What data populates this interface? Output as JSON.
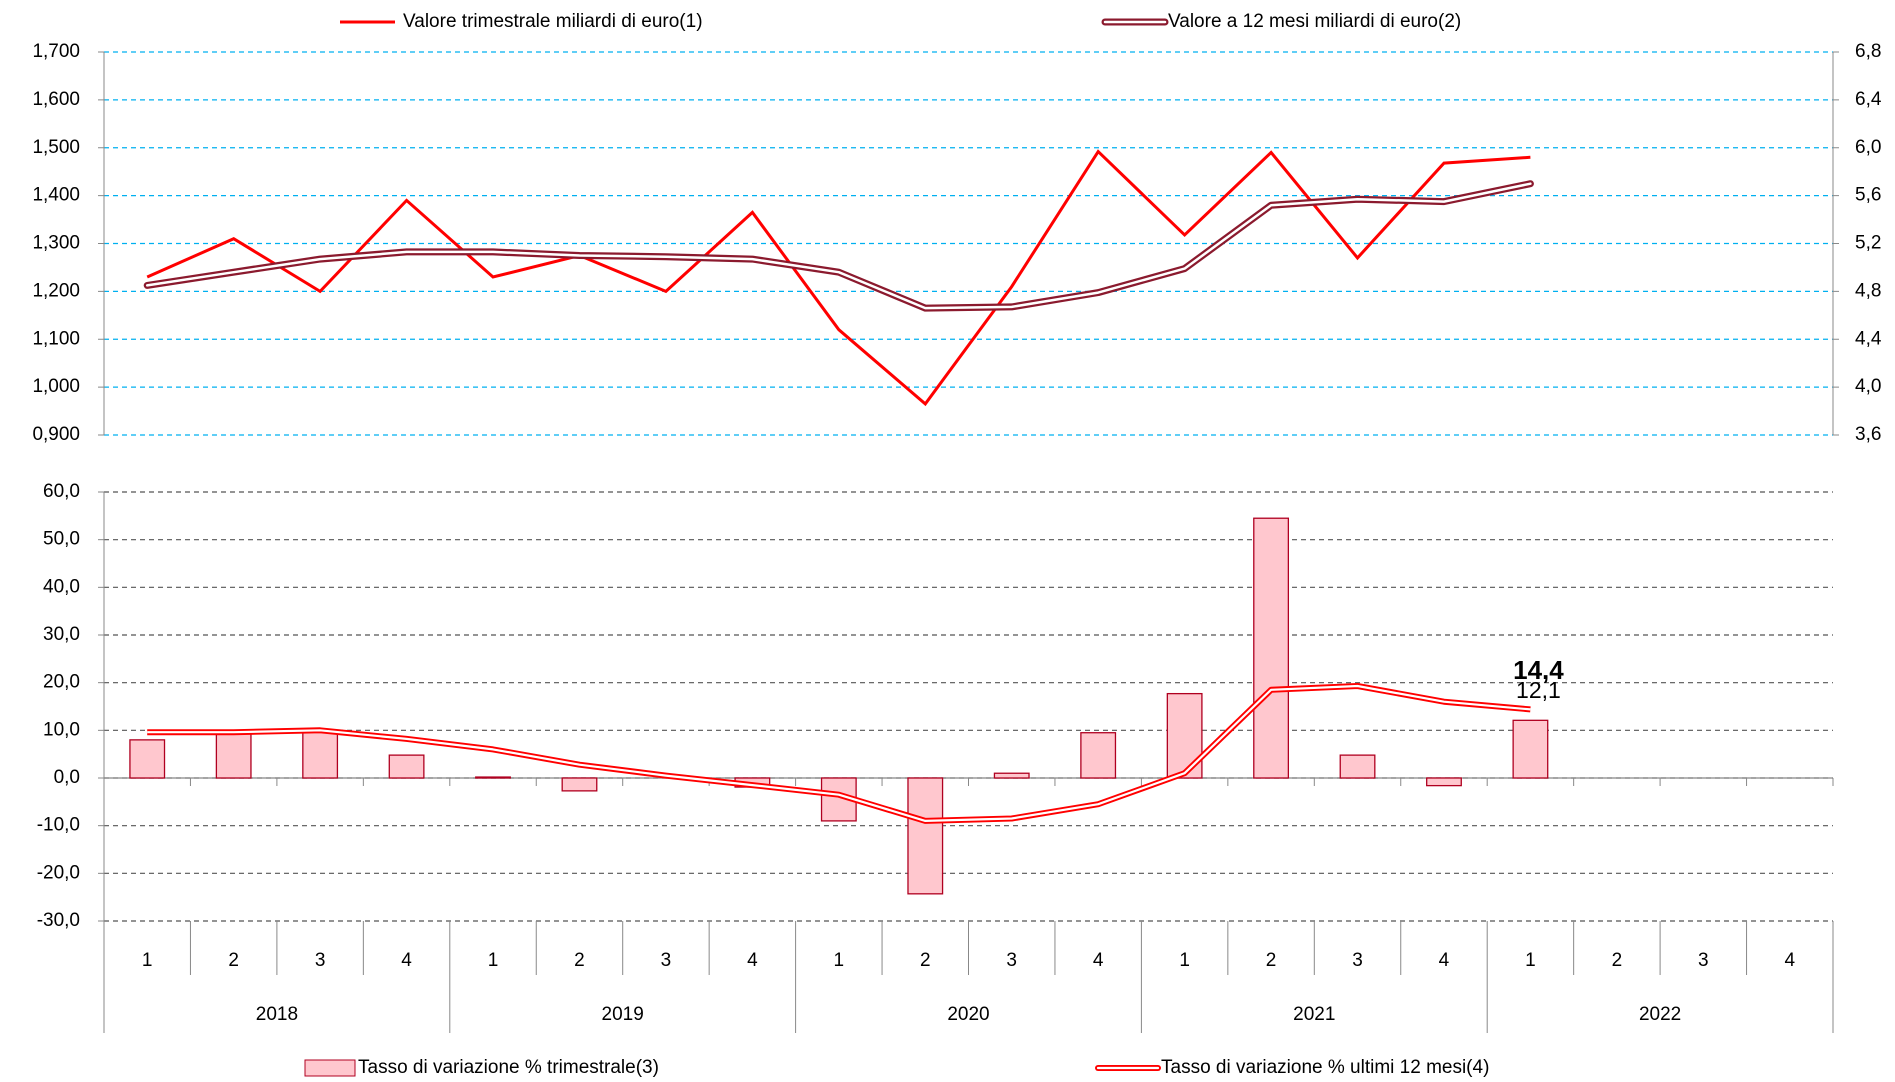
{
  "chart_data": [
    {
      "type": "line",
      "ylim": [
        0.9,
        1.7
      ],
      "yticks": [
        {
          "value": 0.9,
          "label": "0,900"
        },
        {
          "value": 1.0,
          "label": "1,000"
        },
        {
          "value": 1.1,
          "label": "1,100"
        },
        {
          "value": 1.2,
          "label": "1,200"
        },
        {
          "value": 1.3,
          "label": "1,300"
        },
        {
          "value": 1.4,
          "label": "1,400"
        },
        {
          "value": 1.5,
          "label": "1,500"
        },
        {
          "value": 1.6,
          "label": "1,600"
        },
        {
          "value": 1.7,
          "label": "1,700"
        }
      ],
      "y2lim": [
        3.6,
        6.8
      ],
      "y2ticks": [
        {
          "value": 3.6,
          "label": "3,6"
        },
        {
          "value": 4.0,
          "label": "4,0"
        },
        {
          "value": 4.4,
          "label": "4,4"
        },
        {
          "value": 4.8,
          "label": "4,8"
        },
        {
          "value": 5.2,
          "label": "5,2"
        },
        {
          "value": 5.6,
          "label": "5,6"
        },
        {
          "value": 6.0,
          "label": "6,0"
        },
        {
          "value": 6.4,
          "label": "6,4"
        },
        {
          "value": 6.8,
          "label": "6,8"
        }
      ],
      "grid": true,
      "legend": "top",
      "series": [
        {
          "name": "Valore trimestrale miliardi di euro(1)",
          "color": "#ff0000",
          "axis": "y",
          "values": [
            1.23,
            1.31,
            1.2,
            1.39,
            1.23,
            1.275,
            1.2,
            1.365,
            1.12,
            0.965,
            1.21,
            1.492,
            1.318,
            1.49,
            1.27,
            1.468,
            1.48,
            null,
            null,
            null
          ]
        },
        {
          "name": "Valore a 12 mesi miliardi di euro(2)",
          "color": "#8b1a2e",
          "axis": "y2",
          "values": [
            4.85,
            4.96,
            5.07,
            5.13,
            5.13,
            5.1,
            5.09,
            5.07,
            4.96,
            4.66,
            4.67,
            4.79,
            4.99,
            5.52,
            5.57,
            5.55,
            5.7,
            null,
            null,
            null
          ]
        }
      ]
    },
    {
      "type": "bar",
      "categories": [
        "1",
        "2",
        "3",
        "4",
        "1",
        "2",
        "3",
        "4",
        "1",
        "2",
        "3",
        "4",
        "1",
        "2",
        "3",
        "4",
        "1",
        "2",
        "3",
        "4"
      ],
      "groups": [
        "2018",
        "2019",
        "2020",
        "2021",
        "2022"
      ],
      "ylim": [
        -30,
        60
      ],
      "yticks": [
        {
          "value": -30,
          "label": "-30,0"
        },
        {
          "value": -20,
          "label": "-20,0"
        },
        {
          "value": -10,
          "label": "-10,0"
        },
        {
          "value": 0,
          "label": "0,0"
        },
        {
          "value": 10,
          "label": "10,0"
        },
        {
          "value": 20,
          "label": "20,0"
        },
        {
          "value": 30,
          "label": "30,0"
        },
        {
          "value": 40,
          "label": "40,0"
        },
        {
          "value": 50,
          "label": "50,0"
        },
        {
          "value": 60,
          "label": "60,0"
        }
      ],
      "grid": true,
      "legend": "bottom",
      "series": [
        {
          "name": "Tasso di variazione % trimestrale(3)",
          "type": "bar",
          "color": "#ffc7ce",
          "values": [
            8.0,
            9.8,
            9.8,
            4.8,
            0.2,
            -2.7,
            0.0,
            -1.9,
            -9.0,
            -24.3,
            1.0,
            9.5,
            17.7,
            54.5,
            4.8,
            -1.6,
            12.1,
            null,
            null,
            null
          ],
          "value_labels": [
            null,
            null,
            null,
            null,
            null,
            null,
            null,
            null,
            null,
            null,
            null,
            null,
            null,
            null,
            null,
            null,
            "12,1",
            null,
            null,
            null
          ]
        },
        {
          "name": "Tasso di variazione % ultimi 12 mesi(4)",
          "type": "line",
          "color": "#ff0000",
          "values": [
            9.6,
            9.6,
            10.0,
            8.2,
            6.0,
            2.8,
            0.5,
            -1.5,
            -3.5,
            -9.0,
            -8.5,
            -5.5,
            1.0,
            18.5,
            19.3,
            16.0,
            14.4,
            null,
            null,
            null
          ],
          "value_labels": [
            null,
            null,
            null,
            null,
            null,
            null,
            null,
            null,
            null,
            null,
            null,
            null,
            null,
            null,
            null,
            null,
            "14,4",
            null,
            null,
            null
          ]
        }
      ]
    }
  ]
}
